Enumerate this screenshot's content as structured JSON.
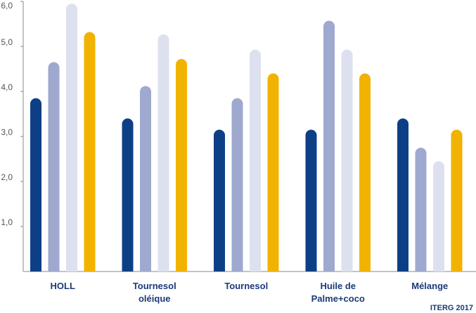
{
  "chart_data": {
    "type": "bar",
    "categories": [
      "HOLL",
      "Tournesol oléique",
      "Tournesol",
      "Huile de Palme+coco",
      "Mélange"
    ],
    "category_lines": [
      [
        "HOLL"
      ],
      [
        "Tournesol",
        "oléique"
      ],
      [
        "Tournesol"
      ],
      [
        "Huile de",
        "Palme+coco"
      ],
      [
        "Mélange"
      ]
    ],
    "series": [
      {
        "color": "#0d3f86",
        "values": [
          3.85,
          3.4,
          3.15,
          3.15,
          3.4
        ]
      },
      {
        "color": "#9fa8cf",
        "values": [
          4.65,
          4.12,
          3.85,
          5.57,
          2.75
        ]
      },
      {
        "color": "#dde1ef",
        "values": [
          5.95,
          5.27,
          4.93,
          4.93,
          2.45
        ]
      },
      {
        "color": "#f1b300",
        "values": [
          5.32,
          4.72,
          4.4,
          4.4,
          3.15
        ]
      }
    ],
    "ylim": [
      0,
      6
    ],
    "yticks": [
      "1,0",
      "2,0",
      "3,0",
      "4,0",
      "5,0",
      "6,0"
    ],
    "grid": false,
    "source": "ITERG 2017"
  }
}
